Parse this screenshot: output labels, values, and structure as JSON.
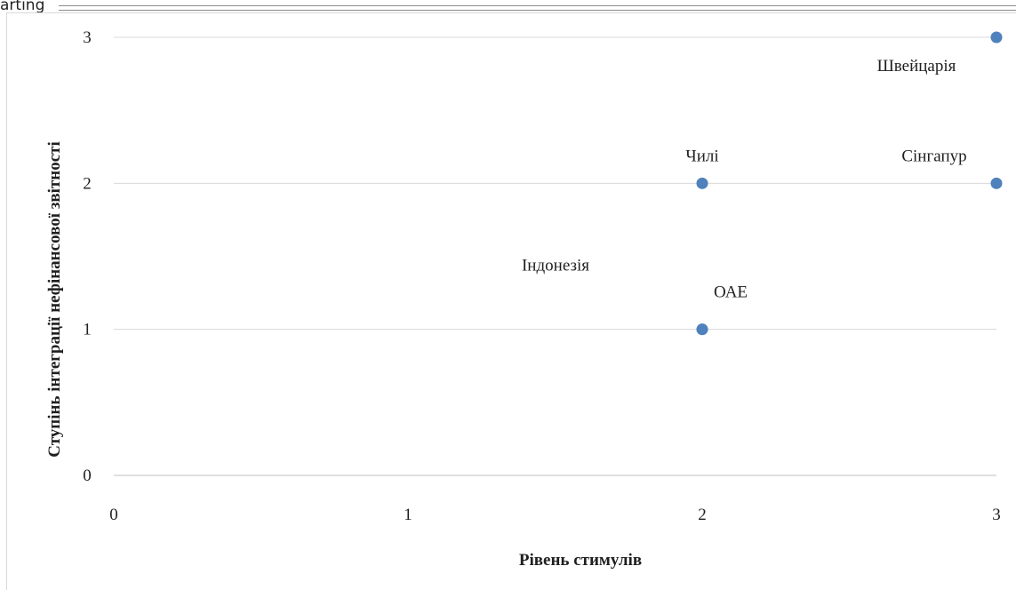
{
  "header": {
    "fragment": "arting"
  },
  "chart_data": {
    "type": "scatter",
    "title": "",
    "xlabel": "Рівень стимулів",
    "ylabel": "Ступінь інтеграції нефінансової звітності",
    "xlim": [
      0,
      3
    ],
    "ylim": [
      0,
      3
    ],
    "x_ticks": [
      "0",
      "1",
      "2",
      "3"
    ],
    "y_ticks": [
      "0",
      "1",
      "2",
      "3"
    ],
    "grid": "horizontal",
    "legend": "none",
    "marker_color": "#4f81bd",
    "points": [
      {
        "label": "Швейцарія",
        "x": 3,
        "y": 3
      },
      {
        "label": "Чилі",
        "x": 2,
        "y": 2
      },
      {
        "label": "Сінгапур",
        "x": 3,
        "y": 2
      },
      {
        "label": "Індонезія",
        "x": 2,
        "y": 1
      },
      {
        "label": "ОАЕ",
        "x": 2,
        "y": 1
      }
    ]
  }
}
